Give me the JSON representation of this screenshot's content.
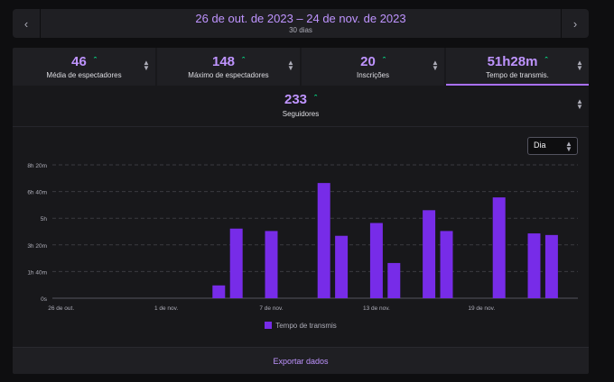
{
  "date_range": {
    "title": "26 de out. de 2023 – 24 de nov. de 2023",
    "subtitle": "30 dias",
    "prev_icon": "chevron-left-icon",
    "next_icon": "chevron-right-icon"
  },
  "stats": [
    {
      "value": "46",
      "label": "Média de espectadores",
      "trend": "up",
      "selected": false
    },
    {
      "value": "148",
      "label": "Máximo de espectadores",
      "trend": "up",
      "selected": false
    },
    {
      "value": "20",
      "label": "Inscrições",
      "trend": "up",
      "selected": false
    },
    {
      "value": "51h28m",
      "label": "Tempo de transmis.",
      "trend": "up",
      "selected": true
    },
    {
      "value": "233",
      "label": "Seguidores",
      "trend": "up",
      "selected": false
    }
  ],
  "granularity": {
    "selected": "Dia"
  },
  "chart_data": {
    "type": "bar",
    "y_unit": "hours",
    "ylim": [
      0,
      8.333
    ],
    "y_ticks": [
      "0s",
      "1h 40m",
      "3h 20m",
      "5h",
      "6h 40m",
      "8h 20m"
    ],
    "x_tick_labels": [
      "26 de out.",
      "1 de nov.",
      "7 de nov.",
      "13 de nov.",
      "19 de nov."
    ],
    "x_tick_indices": [
      0,
      6,
      12,
      18,
      24
    ],
    "grid": true,
    "categories": [
      "26/10",
      "27/10",
      "28/10",
      "29/10",
      "30/10",
      "31/10",
      "01/11",
      "02/11",
      "03/11",
      "04/11",
      "05/11",
      "06/11",
      "07/11",
      "08/11",
      "09/11",
      "10/11",
      "11/11",
      "12/11",
      "13/11",
      "14/11",
      "15/11",
      "16/11",
      "17/11",
      "18/11",
      "19/11",
      "20/11",
      "21/11",
      "22/11",
      "23/11",
      "24/11"
    ],
    "series": [
      {
        "name": "Tempo de transmis",
        "color": "#772ce8",
        "values": [
          0,
          0,
          0,
          0,
          0,
          0,
          0,
          0,
          0,
          0.8,
          4.35,
          0,
          4.2,
          0,
          0,
          7.2,
          3.9,
          0,
          4.7,
          2.2,
          0,
          5.5,
          4.2,
          0,
          0,
          6.3,
          0,
          4.05,
          3.95,
          0
        ]
      }
    ],
    "legend": "bottom-center"
  },
  "footer": {
    "export_label": "Exportar dados"
  }
}
